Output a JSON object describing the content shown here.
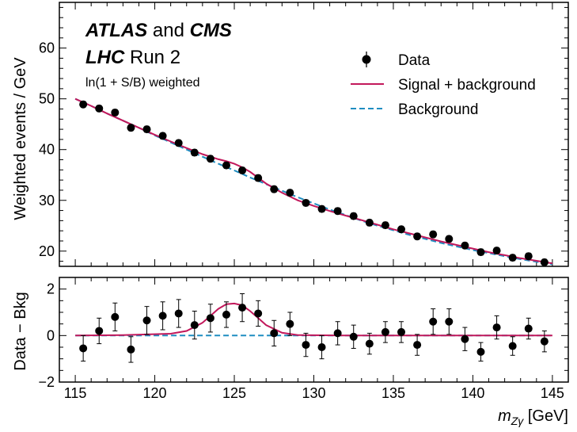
{
  "annotations": {
    "line1_bold": "ATLAS",
    "line1_mid": " and ",
    "line1_bold2": "CMS",
    "line2_bold": "LHC",
    "line2_rest": " Run 2",
    "line3": "ln(1 + S/B) weighted"
  },
  "chart_data": [
    {
      "type": "scatter",
      "panel": "main",
      "ylabel": "Weighted events / GeV",
      "xlim": [
        114,
        146
      ],
      "ylim": [
        17,
        69
      ],
      "yticks": [
        20,
        30,
        40,
        50,
        60
      ],
      "legend": {
        "placement": "top-right",
        "entries": [
          {
            "label": "Data",
            "style": "marker"
          },
          {
            "label": "Signal + background",
            "style": "line",
            "color": "#c2185b"
          },
          {
            "label": "Background",
            "style": "dashed",
            "color": "#1f8dc1"
          }
        ]
      },
      "series": [
        {
          "name": "Data",
          "x": [
            115.5,
            116.5,
            117.5,
            118.5,
            119.5,
            120.5,
            121.5,
            122.5,
            123.5,
            124.5,
            125.5,
            126.5,
            127.5,
            128.5,
            129.5,
            130.5,
            131.5,
            132.5,
            133.5,
            134.5,
            135.5,
            136.5,
            137.5,
            138.5,
            139.5,
            140.5,
            141.5,
            142.5,
            143.5,
            144.5
          ],
          "y": [
            48.9,
            48.1,
            47.3,
            44.3,
            44.0,
            42.7,
            41.3,
            39.4,
            38.2,
            36.9,
            35.9,
            34.4,
            32.2,
            31.5,
            29.5,
            28.3,
            27.9,
            26.9,
            25.6,
            25.1,
            24.3,
            22.9,
            23.3,
            22.4,
            21.1,
            19.8,
            20.1,
            18.7,
            19.0,
            17.8
          ],
          "yerr": [
            0.6,
            0.6,
            0.6,
            0.6,
            0.6,
            0.6,
            0.6,
            0.6,
            0.6,
            0.6,
            0.6,
            0.6,
            0.6,
            0.6,
            0.6,
            0.6,
            0.6,
            0.6,
            0.6,
            0.6,
            0.6,
            0.6,
            0.6,
            0.6,
            0.6,
            0.6,
            0.6,
            0.6,
            0.6,
            0.6
          ]
        },
        {
          "name": "Signal + background",
          "x": [
            115,
            116,
            117,
            118,
            119,
            120,
            121,
            122,
            123,
            124,
            124.5,
            125,
            125.5,
            126,
            127,
            128,
            129,
            130,
            131,
            132,
            133,
            134,
            135,
            136,
            137,
            138,
            139,
            140,
            141,
            142,
            143,
            144,
            145
          ],
          "y": [
            50.0,
            48.6,
            47.1,
            45.7,
            44.3,
            42.9,
            41.6,
            40.3,
            39.1,
            38.1,
            37.7,
            37.2,
            36.5,
            35.6,
            33.3,
            31.5,
            30.0,
            28.9,
            27.9,
            27.0,
            26.1,
            25.2,
            24.3,
            23.5,
            22.7,
            21.9,
            21.2,
            20.5,
            19.8,
            19.2,
            18.6,
            18.1,
            17.6
          ]
        },
        {
          "name": "Background",
          "x": [
            115,
            116,
            117,
            118,
            119,
            120,
            121,
            122,
            123,
            124,
            125,
            126,
            127,
            128,
            129,
            130,
            131,
            132,
            133,
            134,
            135,
            136,
            137,
            138,
            139,
            140,
            141,
            142,
            143,
            144,
            145
          ],
          "y": [
            50.0,
            48.6,
            47.1,
            45.7,
            44.3,
            42.8,
            41.4,
            40.0,
            38.6,
            37.2,
            35.9,
            34.5,
            33.2,
            31.9,
            30.6,
            29.4,
            28.2,
            27.1,
            26.0,
            25.0,
            24.1,
            23.2,
            22.4,
            21.6,
            20.9,
            20.2,
            19.6,
            19.0,
            18.4,
            17.9,
            17.4
          ]
        }
      ]
    },
    {
      "type": "scatter",
      "panel": "ratio",
      "xlabel": "m_Zγ [GeV]",
      "xlabel_main": "m",
      "xlabel_sub": "Zγ",
      "xlabel_unit": " [GeV]",
      "ylabel": "Data − Bkg",
      "xlim": [
        114,
        146
      ],
      "ylim": [
        -2,
        2.5
      ],
      "xticks": [
        115,
        120,
        125,
        130,
        135,
        140,
        145
      ],
      "yticks": [
        -2,
        0,
        2
      ],
      "series": [
        {
          "name": "Data",
          "x": [
            115.5,
            116.5,
            117.5,
            118.5,
            119.5,
            120.5,
            121.5,
            122.5,
            123.5,
            124.5,
            125.5,
            126.5,
            127.5,
            128.5,
            129.5,
            130.5,
            131.5,
            132.5,
            133.5,
            134.5,
            135.5,
            136.5,
            137.5,
            138.5,
            139.5,
            140.5,
            141.5,
            142.5,
            143.5,
            144.5
          ],
          "y": [
            -0.55,
            0.2,
            0.8,
            -0.6,
            0.65,
            0.85,
            0.95,
            0.45,
            0.75,
            0.9,
            1.2,
            0.95,
            0.1,
            0.5,
            -0.4,
            -0.5,
            0.1,
            -0.05,
            -0.35,
            0.15,
            0.15,
            -0.4,
            0.6,
            0.6,
            -0.15,
            -0.7,
            0.35,
            -0.45,
            0.3,
            -0.25
          ],
          "yerr": [
            0.55,
            0.55,
            0.6,
            0.55,
            0.6,
            0.6,
            0.6,
            0.6,
            0.6,
            0.55,
            0.6,
            0.55,
            0.55,
            0.5,
            0.5,
            0.5,
            0.5,
            0.5,
            0.45,
            0.45,
            0.45,
            0.45,
            0.55,
            0.55,
            0.5,
            0.4,
            0.5,
            0.4,
            0.45,
            0.45
          ]
        },
        {
          "name": "Signal + background",
          "x": [
            115,
            118,
            121,
            122,
            123,
            123.5,
            124,
            124.5,
            125,
            125.5,
            126,
            126.5,
            127,
            128,
            129,
            132,
            135,
            138,
            141,
            145
          ],
          "y": [
            0.0,
            0.02,
            0.08,
            0.2,
            0.55,
            0.85,
            1.15,
            1.35,
            1.38,
            1.3,
            1.05,
            0.75,
            0.45,
            0.12,
            0.02,
            0.0,
            0.0,
            0.0,
            0.0,
            0.0
          ]
        },
        {
          "name": "Background",
          "x": [
            115,
            145
          ],
          "y": [
            0,
            0
          ]
        }
      ]
    }
  ],
  "colors": {
    "signal": "#c2185b",
    "background": "#1f8dc1",
    "data": "#000000"
  }
}
